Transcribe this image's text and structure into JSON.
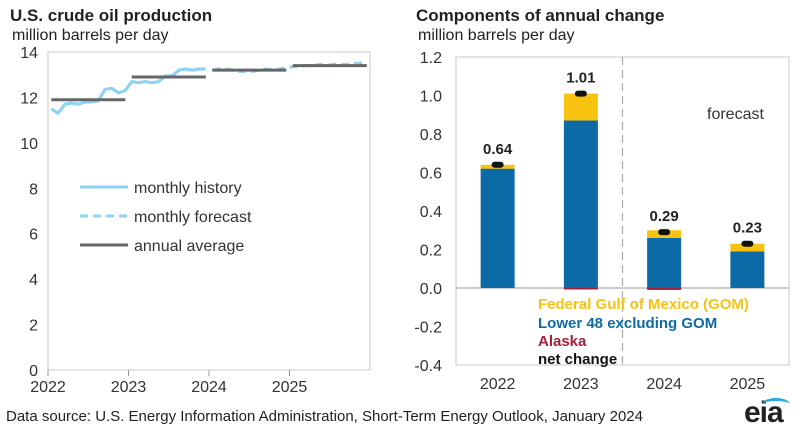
{
  "left_chart": {
    "title": "U.S. crude oil production",
    "subtitle": "million barrels per day"
  },
  "right_chart": {
    "title": "Components of annual change",
    "subtitle": "million barrels per day",
    "forecast_label": "forecast"
  },
  "source": "Data source: U.S. Energy Information Administration, Short-Term Energy Outlook, January 2024",
  "logo": "eia",
  "colors": {
    "history": "#8ed3f2",
    "forecast": "#8ed3f2",
    "annual": "#666666",
    "gom": "#f7c30f",
    "lower48": "#0c6aa6",
    "alaska": "#a51f3a",
    "net": "#111111"
  },
  "chart_data": [
    {
      "type": "line",
      "title": "U.S. crude oil production",
      "ylabel": "million barrels per day",
      "ylim": [
        0,
        14
      ],
      "yticks": [
        0,
        2,
        4,
        6,
        8,
        10,
        12,
        14
      ],
      "xlim": [
        2022,
        2026
      ],
      "xticks": [
        "2022",
        "2023",
        "2024",
        "2025"
      ],
      "legend": [
        "monthly history",
        "monthly forecast",
        "annual average"
      ],
      "legend_placement": "center-left",
      "series": [
        {
          "name": "monthly history",
          "x": [
            "2022-01",
            "2022-02",
            "2022-03",
            "2022-04",
            "2022-05",
            "2022-06",
            "2022-07",
            "2022-08",
            "2022-09",
            "2022-10",
            "2022-11",
            "2022-12",
            "2023-01",
            "2023-02",
            "2023-03",
            "2023-04",
            "2023-05",
            "2023-06",
            "2023-07",
            "2023-08",
            "2023-09",
            "2023-10",
            "2023-11",
            "2023-12"
          ],
          "values": [
            11.5,
            11.3,
            11.7,
            11.75,
            11.7,
            11.8,
            11.8,
            11.85,
            12.35,
            12.4,
            12.2,
            12.3,
            12.7,
            12.65,
            12.7,
            12.65,
            12.7,
            12.95,
            12.95,
            13.2,
            13.25,
            13.2,
            13.25,
            13.25
          ]
        },
        {
          "name": "monthly forecast",
          "x": [
            "2024-01",
            "2024-02",
            "2024-03",
            "2024-04",
            "2024-05",
            "2024-06",
            "2024-07",
            "2024-08",
            "2024-09",
            "2024-10",
            "2024-11",
            "2024-12",
            "2025-01",
            "2025-02",
            "2025-03",
            "2025-04",
            "2025-05",
            "2025-06",
            "2025-07",
            "2025-08",
            "2025-09",
            "2025-10",
            "2025-11",
            "2025-12"
          ],
          "values": [
            13.2,
            13.25,
            13.25,
            13.2,
            13.15,
            13.15,
            13.15,
            13.2,
            13.25,
            13.2,
            13.25,
            13.3,
            13.35,
            13.4,
            13.4,
            13.4,
            13.45,
            13.4,
            13.45,
            13.45,
            13.45,
            13.5,
            13.5,
            13.6
          ]
        },
        {
          "name": "annual average",
          "x": [
            "2022",
            "2023",
            "2024",
            "2025"
          ],
          "values": [
            11.9,
            12.9,
            13.2,
            13.4
          ]
        }
      ]
    },
    {
      "type": "bar",
      "stacked": true,
      "title": "Components of annual change",
      "ylabel": "million barrels per day",
      "ylim": [
        -0.4,
        1.2
      ],
      "yticks": [
        "-0.4",
        "-0.2",
        "0.0",
        "0.2",
        "0.4",
        "0.6",
        "0.8",
        "1.0",
        "1.2"
      ],
      "categories": [
        "2022",
        "2023",
        "2024",
        "2025"
      ],
      "forecast_start": "2024",
      "annotation": "forecast",
      "legend_placement": "bottom-center",
      "series": [
        {
          "name": "Federal Gulf  of Mexico (GOM)",
          "values": [
            0.02,
            0.14,
            0.04,
            0.04
          ]
        },
        {
          "name": "Lower 48 excluding GOM",
          "values": [
            0.62,
            0.87,
            0.26,
            0.19
          ]
        },
        {
          "name": "Alaska",
          "values": [
            0.0,
            -0.005,
            -0.01,
            0.0
          ]
        }
      ],
      "net_change": {
        "name": "net change",
        "values": [
          0.64,
          1.01,
          0.29,
          0.23
        ],
        "labels": [
          "0.64",
          "1.01",
          "0.29",
          "0.23"
        ]
      }
    }
  ]
}
